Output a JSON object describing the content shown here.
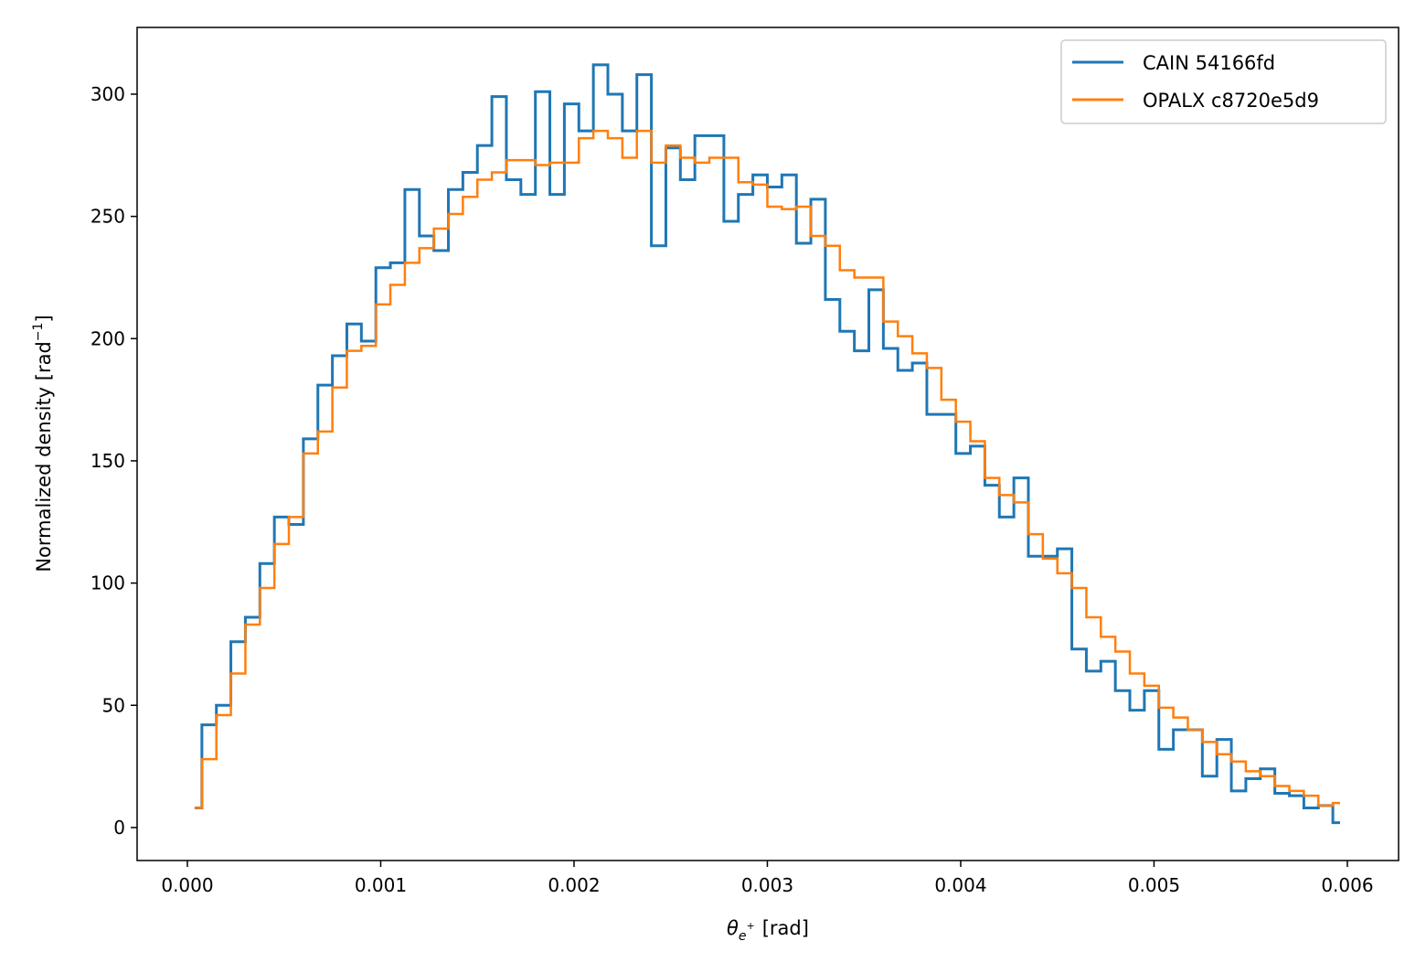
{
  "chart_data": {
    "type": "line",
    "style": "step (mid), histogram",
    "title": "",
    "xlabel": "θ",
    "xlabel_sub": "e",
    "xlabel_sup": "+",
    "xlabel_unit": "[rad]",
    "ylabel": "Normalized density [rad",
    "ylabel_sup": "−1",
    "ylabel_close": "]",
    "xlim": [
      -0.00026,
      0.006265
    ],
    "ylim": [
      -13.5,
      327.3
    ],
    "xticks": [
      "0.000",
      "0.001",
      "0.002",
      "0.003",
      "0.004",
      "0.005",
      "0.006"
    ],
    "xtick_values": [
      0,
      0.001,
      0.002,
      0.003,
      0.004,
      0.005,
      0.006
    ],
    "yticks": [
      "0",
      "50",
      "100",
      "150",
      "200",
      "250",
      "300"
    ],
    "ytick_values": [
      0,
      50,
      100,
      150,
      200,
      250,
      300
    ],
    "grid": false,
    "legend_position": "top-right",
    "bin_centers": {
      "start": 3.75e-05,
      "step": 7.5e-05,
      "count": 80
    },
    "series": [
      {
        "name": "CAIN 54166fd",
        "color": "#1f77b4",
        "values": [
          8,
          42,
          50,
          76,
          86,
          108,
          127,
          124,
          159,
          181,
          193,
          206,
          199,
          229,
          231,
          261,
          242,
          236,
          261,
          268,
          279,
          299,
          265,
          259,
          301,
          259,
          296,
          285,
          312,
          300,
          285,
          308,
          238,
          278,
          265,
          283,
          283,
          248,
          259,
          267,
          262,
          267,
          239,
          257,
          216,
          203,
          195,
          220,
          196,
          187,
          190,
          169,
          169,
          153,
          156,
          140,
          127,
          143,
          111,
          111,
          114,
          73,
          64,
          68,
          56,
          48,
          56,
          32,
          40,
          40,
          21,
          36,
          15,
          20,
          24,
          14,
          13,
          8,
          9,
          2
        ]
      },
      {
        "name": "OPALX c8720e5d9",
        "color": "#ff7f0e",
        "values": [
          8,
          28,
          46,
          63,
          83,
          98,
          116,
          127,
          153,
          162,
          180,
          195,
          197,
          214,
          222,
          231,
          237,
          245,
          251,
          258,
          265,
          268,
          273,
          273,
          271,
          272,
          272,
          282,
          285,
          282,
          274,
          285,
          272,
          279,
          274,
          272,
          274,
          274,
          264,
          263,
          254,
          253,
          254,
          242,
          238,
          228,
          225,
          225,
          207,
          201,
          194,
          188,
          175,
          166,
          158,
          143,
          136,
          133,
          120,
          110,
          104,
          98,
          86,
          78,
          72,
          63,
          58,
          49,
          45,
          40,
          35,
          30,
          27,
          23,
          21,
          17,
          15,
          13,
          9,
          10
        ]
      }
    ]
  }
}
